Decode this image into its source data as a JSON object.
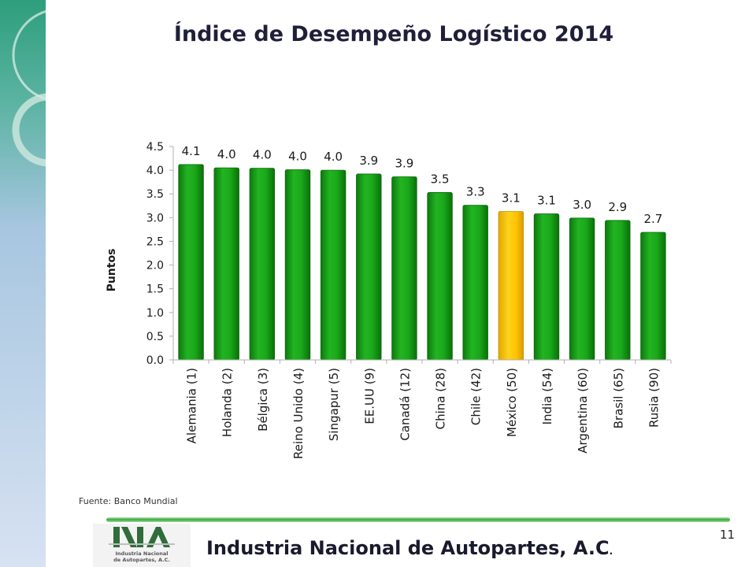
{
  "slide": {
    "title": "Índice de Desempeño Logístico 2014",
    "source": "Fuente: Banco Mundial",
    "company": "Industria Nacional de  Autopartes, A.C",
    "company_dot": ".",
    "page_number": "11",
    "logo_text": "Industria Nacional\nde Autopartes, A.C."
  },
  "colors": {
    "bar": "#16a016",
    "bar_highlight": "#ffc400",
    "sidebar_top": "#2e9e7c",
    "sidebar_bottom": "#d0dcef",
    "divider": "#43b043"
  },
  "chart_data": {
    "type": "bar",
    "title": "",
    "xlabel": "",
    "ylabel": "Puntos",
    "ylim": [
      0,
      4.5
    ],
    "yticks": [
      "0.0",
      "0.5",
      "1.0",
      "1.5",
      "2.0",
      "2.5",
      "3.0",
      "3.5",
      "4.0",
      "4.5"
    ],
    "grid": false,
    "legend": false,
    "categories": [
      "Alemania (1)",
      "Holanda (2)",
      "Bélgica (3)",
      "Reino Unido (4)",
      "Singapur (5)",
      "EE.UU (9)",
      "Canadá (12)",
      "China (28)",
      "Chile (42)",
      "México (50)",
      "India (54)",
      "Argentina (60)",
      "Brasil (65)",
      "Rusia (90)"
    ],
    "values": [
      4.12,
      4.05,
      4.04,
      4.01,
      4.0,
      3.92,
      3.86,
      3.53,
      3.26,
      3.13,
      3.08,
      2.99,
      2.94,
      2.69
    ],
    "labels": [
      "4.1",
      "4.0",
      "4.0",
      "4.0",
      "4.0",
      "3.9",
      "3.9",
      "3.5",
      "3.3",
      "3.1",
      "3.1",
      "3.0",
      "2.9",
      "2.7"
    ],
    "highlight": "México (50)"
  }
}
